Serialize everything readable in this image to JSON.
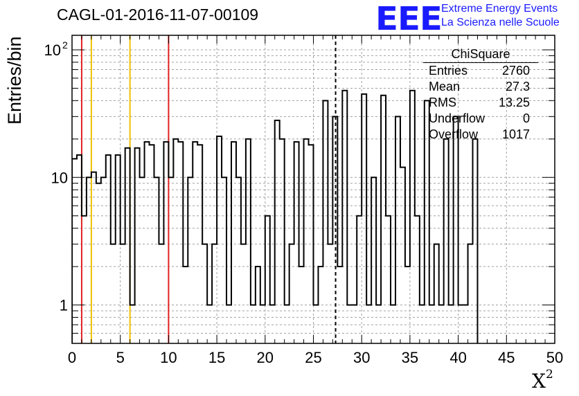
{
  "title": "CAGL-01-2016-11-07-00109",
  "logo": {
    "mark": "EEE",
    "line1": "Extreme Energy Events",
    "line2": "La Scienza nelle Scuole",
    "color": "#1a1aff"
  },
  "stats": {
    "title": "ChiSquare",
    "rows": [
      {
        "key": "Entries",
        "value": "2760"
      },
      {
        "key": "Mean",
        "value": "27.3"
      },
      {
        "key": "RMS",
        "value": "13.25"
      },
      {
        "key": "Underflow",
        "value": "0"
      },
      {
        "key": "Overflow",
        "value": "1017"
      }
    ]
  },
  "chart_data": {
    "type": "histogram",
    "title": "CAGL-01-2016-11-07-00109",
    "xlabel": "X",
    "xlabel_sup": "2",
    "ylabel": "Entries/bin",
    "xlim": [
      0,
      50
    ],
    "ylim": [
      0.5,
      130
    ],
    "yscale": "log",
    "grid": true,
    "bin_width": 0.5,
    "x_ticks": [
      "0",
      "5",
      "10",
      "15",
      "20",
      "25",
      "30",
      "35",
      "40",
      "45",
      "50"
    ],
    "y_ticks": [
      {
        "value": 1,
        "label": "1",
        "sup": ""
      },
      {
        "value": 10,
        "label": "10",
        "sup": ""
      },
      {
        "value": 100,
        "label": "10",
        "sup": "2"
      }
    ],
    "values": [
      14,
      15,
      5,
      10,
      11,
      9,
      10,
      15,
      3,
      15,
      3,
      17,
      1,
      17,
      10,
      19,
      18,
      10,
      3,
      19,
      10,
      20,
      19,
      2,
      10,
      19,
      18,
      3,
      1,
      3,
      21,
      10,
      1,
      19,
      10,
      3,
      20,
      1,
      2,
      1,
      5,
      1,
      28,
      20,
      1,
      3,
      19,
      2,
      20,
      18,
      1,
      2,
      40,
      3,
      30,
      2,
      48,
      1,
      1,
      5,
      45,
      1,
      10,
      1,
      44,
      5,
      1,
      30,
      12,
      2,
      48,
      5,
      1,
      40,
      1,
      3,
      1,
      20,
      1,
      30,
      1,
      1,
      3,
      20
    ],
    "vlines": [
      {
        "x": 1,
        "color": "#e02020",
        "style": "solid"
      },
      {
        "x": 2,
        "color": "#f0c000",
        "style": "solid"
      },
      {
        "x": 6,
        "color": "#f0c000",
        "style": "solid"
      },
      {
        "x": 10,
        "color": "#e02020",
        "style": "solid"
      },
      {
        "x": 27.3,
        "color": "#000000",
        "style": "dashed"
      }
    ]
  }
}
